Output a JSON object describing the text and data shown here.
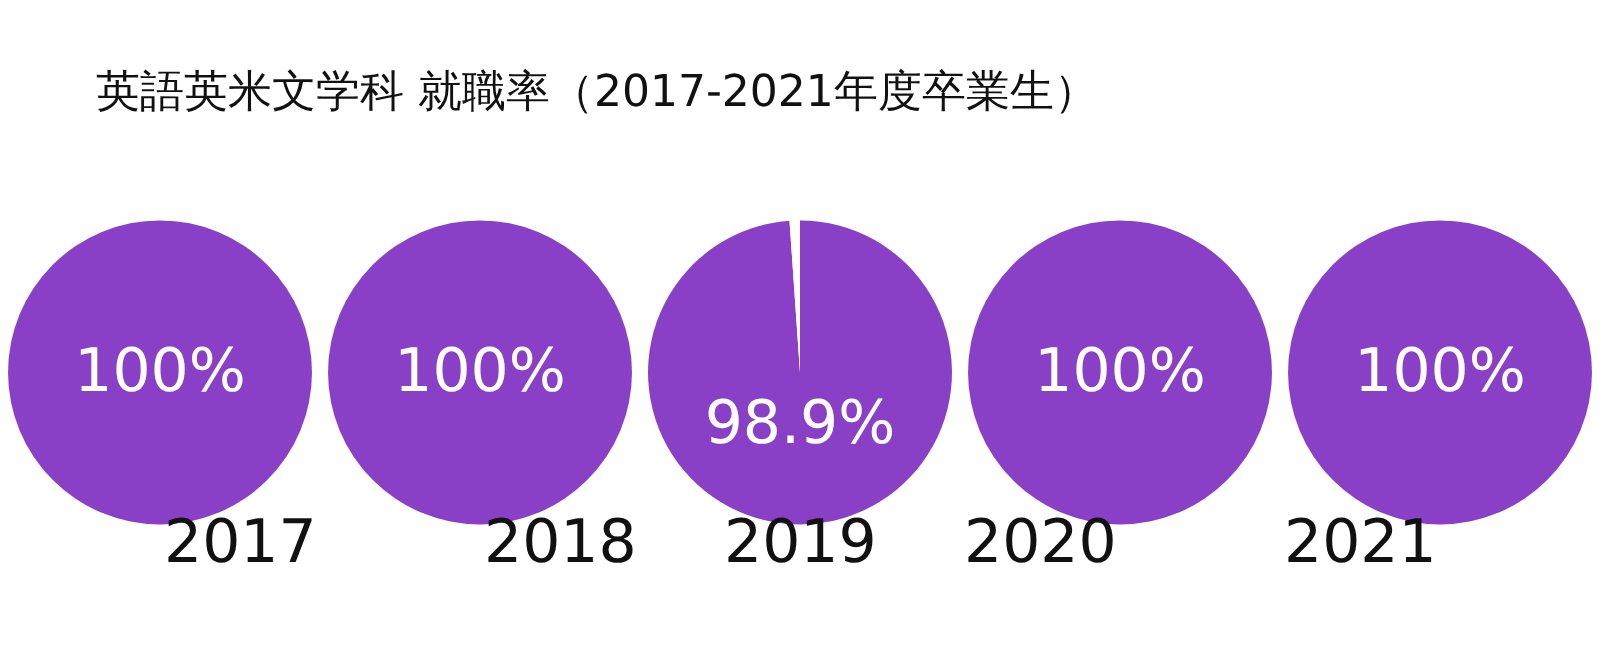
{
  "chart_data": [
    {
      "type": "pie",
      "title": "英語英米文学科 就職率（2017-2021年度卒業生）",
      "xlabel": "2017",
      "categories": [
        null
      ],
      "values": [
        100
      ],
      "colors": [
        "#8a40c6"
      ],
      "value_labels": [
        "100%"
      ]
    },
    {
      "type": "pie",
      "xlabel": "2018",
      "categories": [
        null
      ],
      "values": [
        100
      ],
      "colors": [
        "#8a40c6"
      ],
      "value_labels": [
        "100%"
      ]
    },
    {
      "type": "pie",
      "xlabel": "2019",
      "categories": [
        null,
        null
      ],
      "values": [
        98.9,
        1.1
      ],
      "colors": [
        "#8a40c6",
        "#ffffff"
      ],
      "value_labels": [
        "98.9%",
        null
      ]
    },
    {
      "type": "pie",
      "xlabel": "2020",
      "categories": [
        null
      ],
      "values": [
        100
      ],
      "colors": [
        "#8a40c6"
      ],
      "value_labels": [
        "100%"
      ]
    },
    {
      "type": "pie",
      "xlabel": "2021",
      "categories": [
        null
      ],
      "values": [
        100
      ],
      "colors": [
        "#8a40c6"
      ],
      "value_labels": [
        "100%"
      ]
    }
  ]
}
